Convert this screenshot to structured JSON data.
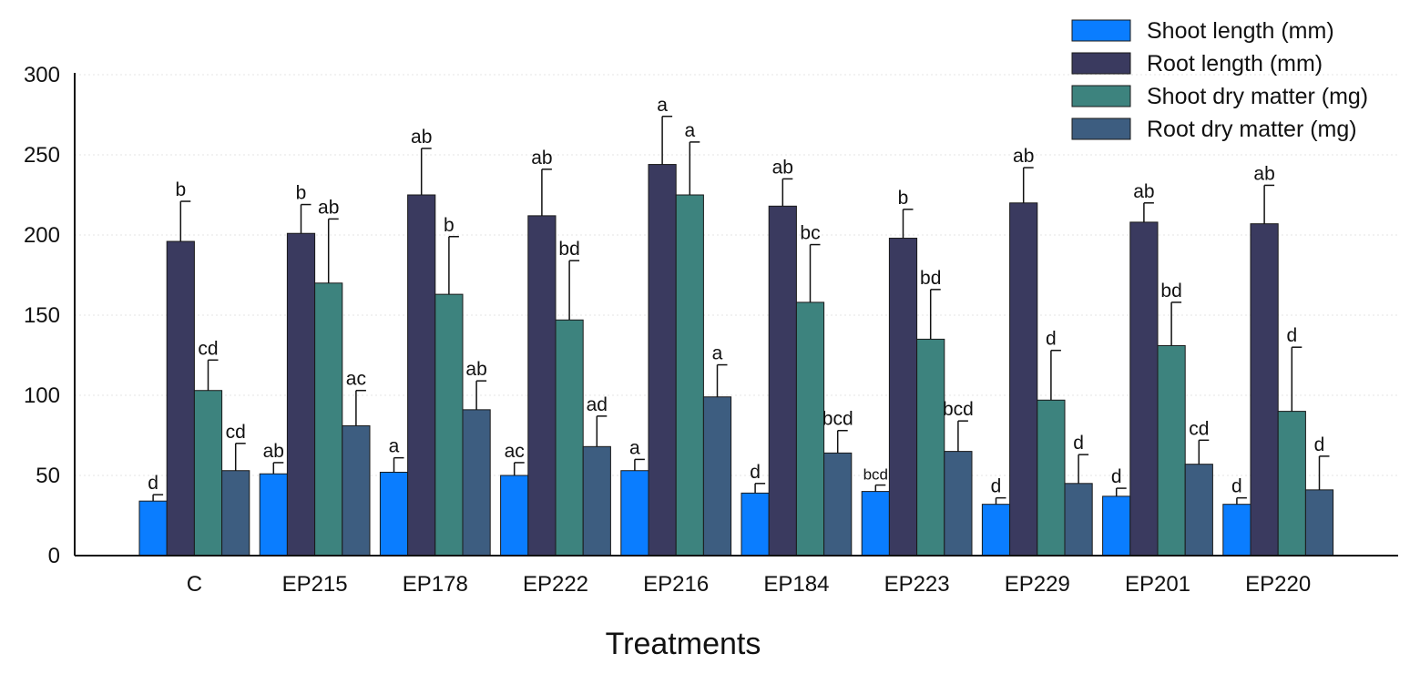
{
  "chart_data": {
    "type": "bar",
    "title": "",
    "xlabel": "Treatments",
    "ylabel": "",
    "ylim": [
      0,
      300
    ],
    "yticks": [
      0,
      50,
      100,
      150,
      200,
      250,
      300
    ],
    "categories": [
      "C",
      "EP215",
      "EP178",
      "EP222",
      "EP216",
      "EP184",
      "EP223",
      "EP229",
      "EP201",
      "EP220"
    ],
    "legend_position": "top-right",
    "series": [
      {
        "name": "Shoot length (mm)",
        "color": "#0a7dff",
        "values": [
          34,
          51,
          52,
          50,
          53,
          39,
          40,
          32,
          37,
          32
        ],
        "errors": [
          4,
          7,
          9,
          8,
          7,
          6,
          4,
          4,
          5,
          4
        ],
        "letters": [
          "d",
          "ab",
          "a",
          "ac",
          "a",
          "d",
          "bcd",
          "d",
          "d",
          "d"
        ]
      },
      {
        "name": "Root length (mm)",
        "color": "#3a3a5f",
        "values": [
          196,
          201,
          225,
          212,
          244,
          218,
          198,
          220,
          208,
          207
        ],
        "errors": [
          25,
          18,
          29,
          29,
          30,
          17,
          18,
          22,
          12,
          24
        ],
        "letters": [
          "b",
          "b",
          "ab",
          "ab",
          "a",
          "ab",
          "b",
          "ab",
          "ab",
          "ab"
        ]
      },
      {
        "name": "Shoot dry matter (mg)",
        "color": "#3d837e",
        "values": [
          103,
          170,
          163,
          147,
          225,
          158,
          135,
          97,
          131,
          90
        ],
        "errors": [
          19,
          40,
          36,
          37,
          33,
          36,
          31,
          31,
          27,
          40
        ],
        "letters": [
          "cd",
          "ab",
          "b",
          "bd",
          "a",
          "bc",
          "bd",
          "d",
          "bd",
          "d"
        ]
      },
      {
        "name": "Root dry matter (mg)",
        "color": "#3d5d80",
        "values": [
          53,
          81,
          91,
          68,
          99,
          64,
          65,
          45,
          57,
          41
        ],
        "errors": [
          17,
          22,
          18,
          19,
          20,
          14,
          19,
          18,
          15,
          21
        ],
        "letters": [
          "cd",
          "ac",
          "ab",
          "ad",
          "a",
          "bcd",
          "bcd",
          "d",
          "cd",
          "d"
        ]
      }
    ]
  }
}
